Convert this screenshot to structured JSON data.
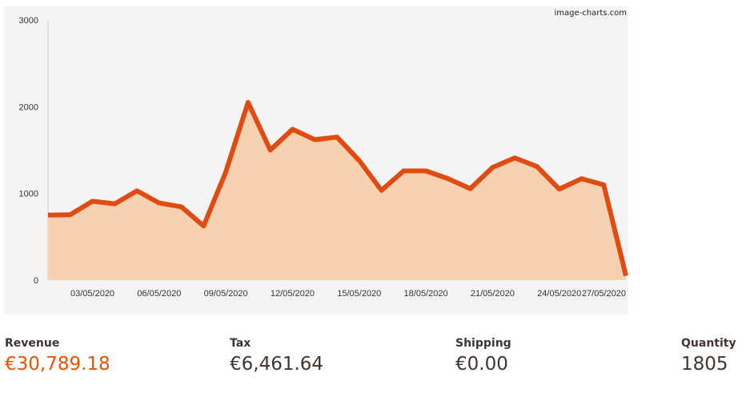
{
  "chart_data": {
    "type": "area",
    "title": "",
    "xlabel": "",
    "ylabel": "",
    "ylim": [
      0,
      3000
    ],
    "yticks": [
      0,
      1000,
      2000,
      3000
    ],
    "grid": false,
    "watermark": "image-charts.com",
    "x": [
      "01/05/2020",
      "02/05/2020",
      "03/05/2020",
      "04/05/2020",
      "05/05/2020",
      "06/05/2020",
      "07/05/2020",
      "08/05/2020",
      "09/05/2020",
      "10/05/2020",
      "11/05/2020",
      "12/05/2020",
      "13/05/2020",
      "14/05/2020",
      "15/05/2020",
      "16/05/2020",
      "17/05/2020",
      "18/05/2020",
      "19/05/2020",
      "20/05/2020",
      "21/05/2020",
      "22/05/2020",
      "23/05/2020",
      "24/05/2020",
      "25/05/2020",
      "26/05/2020",
      "27/05/2020"
    ],
    "xtick_labels": [
      "03/05/2020",
      "06/05/2020",
      "09/05/2020",
      "12/05/2020",
      "15/05/2020",
      "18/05/2020",
      "21/05/2020",
      "24/05/2020",
      "27/05/2020"
    ],
    "series": [
      {
        "values": [
          750,
          755,
          910,
          880,
          1030,
          890,
          845,
          625,
          1250,
          2050,
          1500,
          1740,
          1620,
          1650,
          1380,
          1035,
          1260,
          1260,
          1170,
          1055,
          1300,
          1410,
          1310,
          1050,
          1170,
          1100,
          50
        ],
        "line_color": "#e04b12",
        "fill_color": "#f7d2b2"
      }
    ],
    "background_color": "#f4f4f4"
  },
  "totals": [
    {
      "label": "Revenue",
      "value": "€30,789.18",
      "color": "#eb5202"
    },
    {
      "label": "Tax",
      "value": "€6,461.64",
      "color": "#41362f"
    },
    {
      "label": "Shipping",
      "value": "€0.00",
      "color": "#41362f"
    },
    {
      "label": "Quantity",
      "value": "1805",
      "color": "#41362f"
    }
  ]
}
